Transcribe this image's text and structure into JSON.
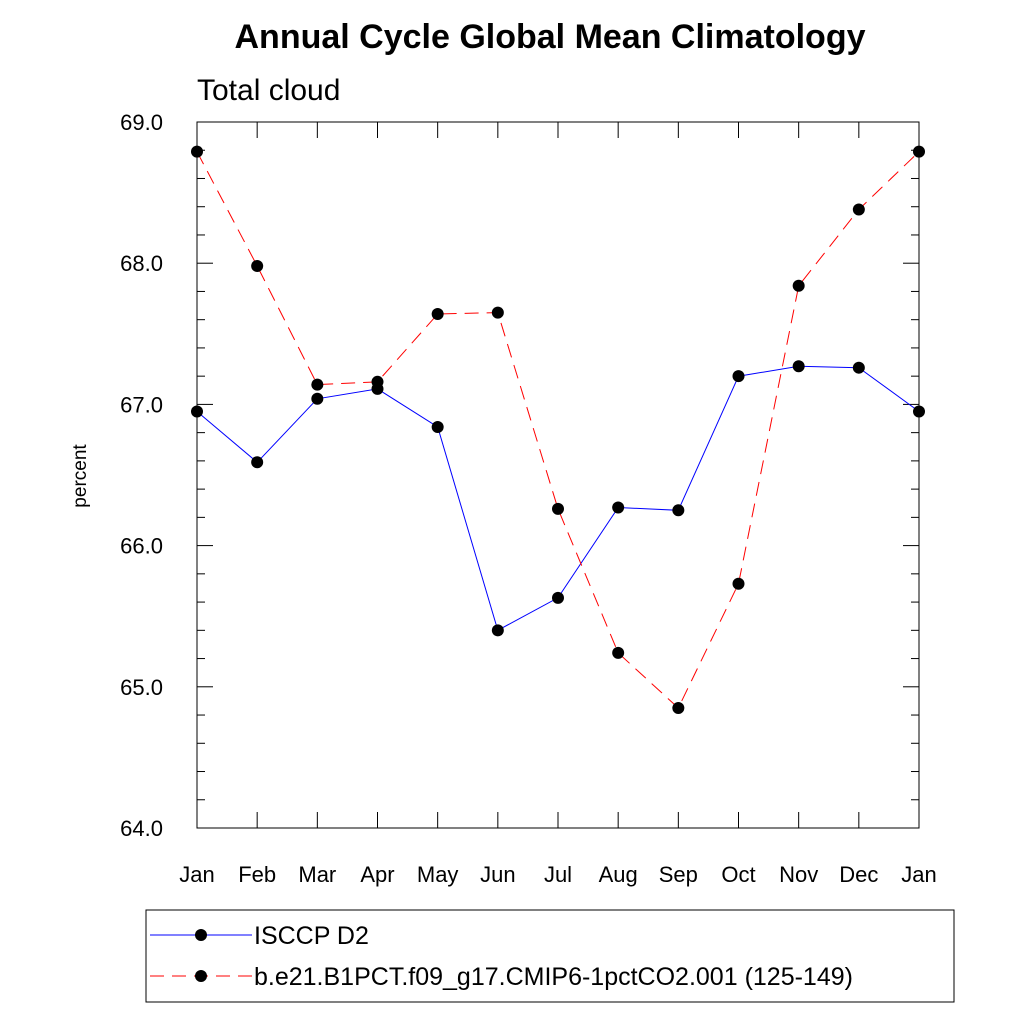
{
  "chart_data": {
    "type": "line",
    "title": "Annual Cycle Global Mean Climatology",
    "subtitle": "Total cloud",
    "xlabel": "",
    "ylabel": "percent",
    "categories": [
      "Jan",
      "Feb",
      "Mar",
      "Apr",
      "May",
      "Jun",
      "Jul",
      "Aug",
      "Sep",
      "Oct",
      "Nov",
      "Dec",
      "Jan"
    ],
    "ylim": [
      64.0,
      69.0
    ],
    "yticks": [
      "64.0",
      "65.0",
      "66.0",
      "67.0",
      "68.0",
      "69.0"
    ],
    "grid": false,
    "legend_position": "bottom",
    "series": [
      {
        "name": "ISCCP D2",
        "color": "#0000ff",
        "line_style": "solid",
        "values": [
          66.95,
          66.59,
          67.04,
          67.11,
          66.84,
          65.4,
          65.63,
          66.27,
          66.25,
          67.2,
          67.27,
          67.26,
          66.95
        ]
      },
      {
        "name": "b.e21.B1PCT.f09_g17.CMIP6-1pctCO2.001 (125-149)",
        "color": "#ff0000",
        "line_style": "dashed",
        "values": [
          68.79,
          67.98,
          67.14,
          67.16,
          67.64,
          67.65,
          66.26,
          65.24,
          64.85,
          65.73,
          67.84,
          68.38,
          68.79
        ]
      }
    ]
  }
}
